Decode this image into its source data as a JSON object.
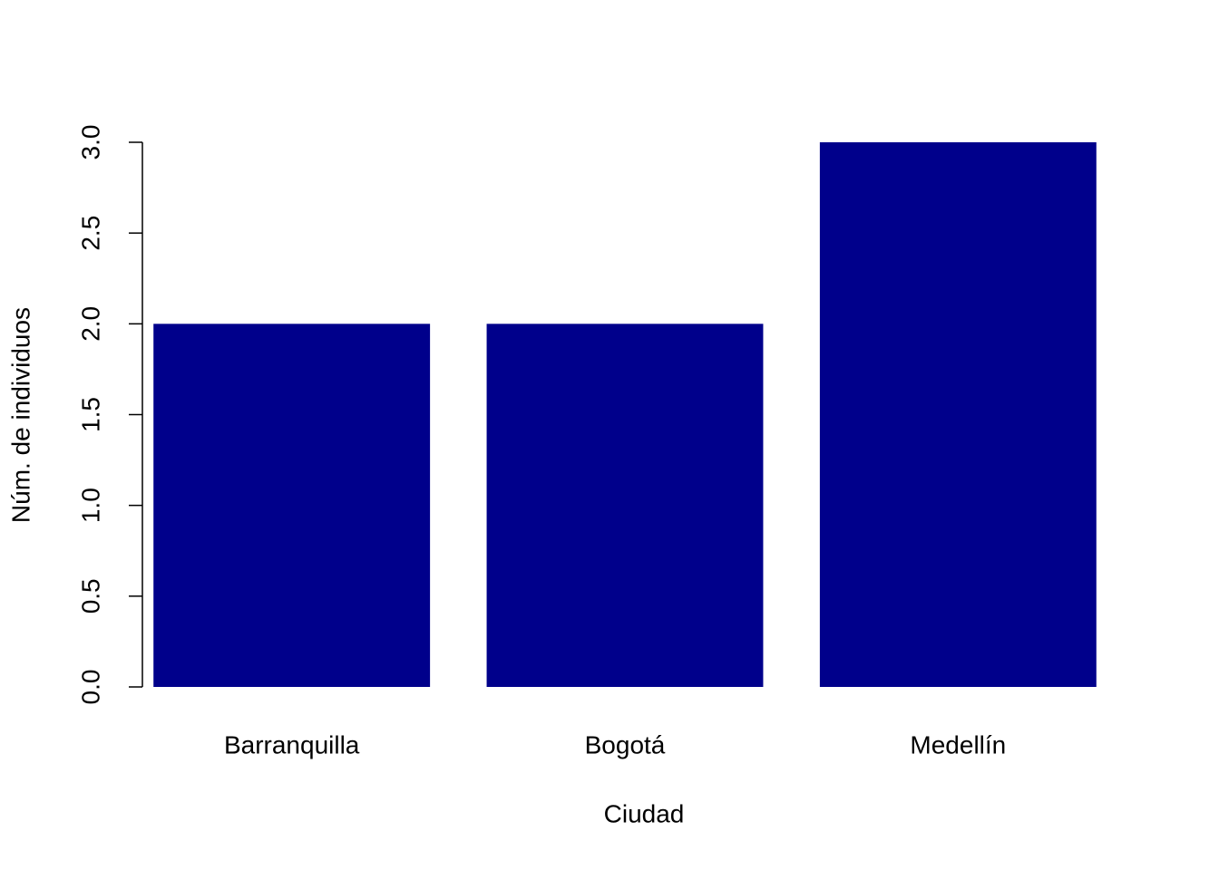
{
  "chart_data": {
    "type": "bar",
    "categories": [
      "Barranquilla",
      "Bogotá",
      "Medellín"
    ],
    "values": [
      2,
      2,
      3
    ],
    "color": "#00008b",
    "xlabel": "Ciudad",
    "ylabel": "Núm. de individuos",
    "ylim": [
      0,
      3
    ],
    "yticks": [
      {
        "value": 0,
        "label": "0.0"
      },
      {
        "value": 0.5,
        "label": "0.5"
      },
      {
        "value": 1,
        "label": "1.0"
      },
      {
        "value": 1.5,
        "label": "1.5"
      },
      {
        "value": 2,
        "label": "2.0"
      },
      {
        "value": 2.5,
        "label": "2.5"
      },
      {
        "value": 3,
        "label": "3.0"
      }
    ]
  }
}
